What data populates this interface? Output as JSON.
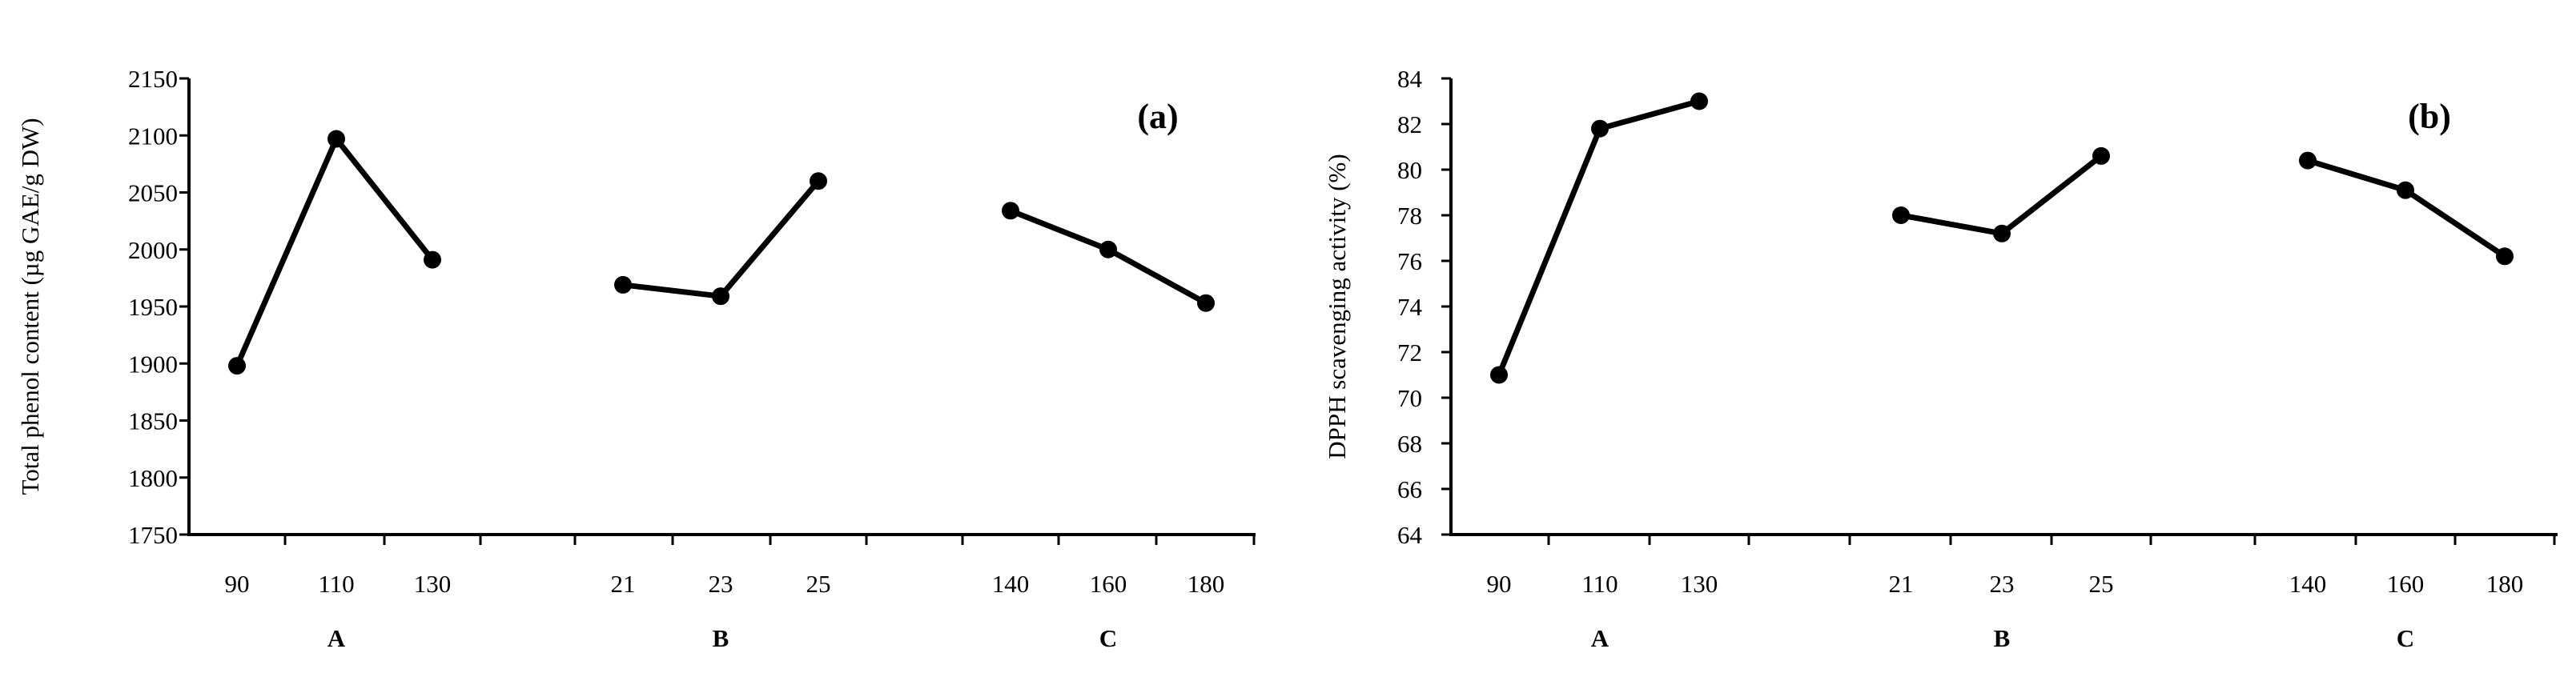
{
  "chart_data": [
    {
      "type": "line",
      "panel_label": "(a)",
      "ylabel": "Total phenol content (µg GAE/g DW)",
      "ylim": [
        1750,
        2150
      ],
      "yticks": [
        1750,
        1800,
        1850,
        1900,
        1950,
        2000,
        2050,
        2100,
        2150
      ],
      "groups": [
        {
          "factor": "A",
          "x": [
            "90",
            "110",
            "130"
          ],
          "values": [
            1898,
            2097,
            1991
          ]
        },
        {
          "factor": "B",
          "x": [
            "21",
            "23",
            "25"
          ],
          "values": [
            1969,
            1959,
            2060
          ]
        },
        {
          "factor": "C",
          "x": [
            "140",
            "160",
            "180"
          ],
          "values": [
            2034,
            2000,
            1953
          ]
        }
      ],
      "grid": false
    },
    {
      "type": "line",
      "panel_label": "(b)",
      "ylabel": "DPPH scavenging activity (%)",
      "ylim": [
        64,
        84
      ],
      "yticks": [
        64,
        66,
        68,
        70,
        72,
        74,
        76,
        78,
        80,
        82,
        84
      ],
      "groups": [
        {
          "factor": "A",
          "x": [
            "90",
            "110",
            "130"
          ],
          "values": [
            71.0,
            81.8,
            83.0
          ]
        },
        {
          "factor": "B",
          "x": [
            "21",
            "23",
            "25"
          ],
          "values": [
            78.0,
            77.2,
            80.6
          ]
        },
        {
          "factor": "C",
          "x": [
            "140",
            "160",
            "180"
          ],
          "values": [
            80.4,
            79.1,
            76.2
          ]
        }
      ],
      "grid": false
    }
  ],
  "colors": {
    "line": "#000000",
    "marker": "#000000",
    "background": "#ffffff"
  }
}
